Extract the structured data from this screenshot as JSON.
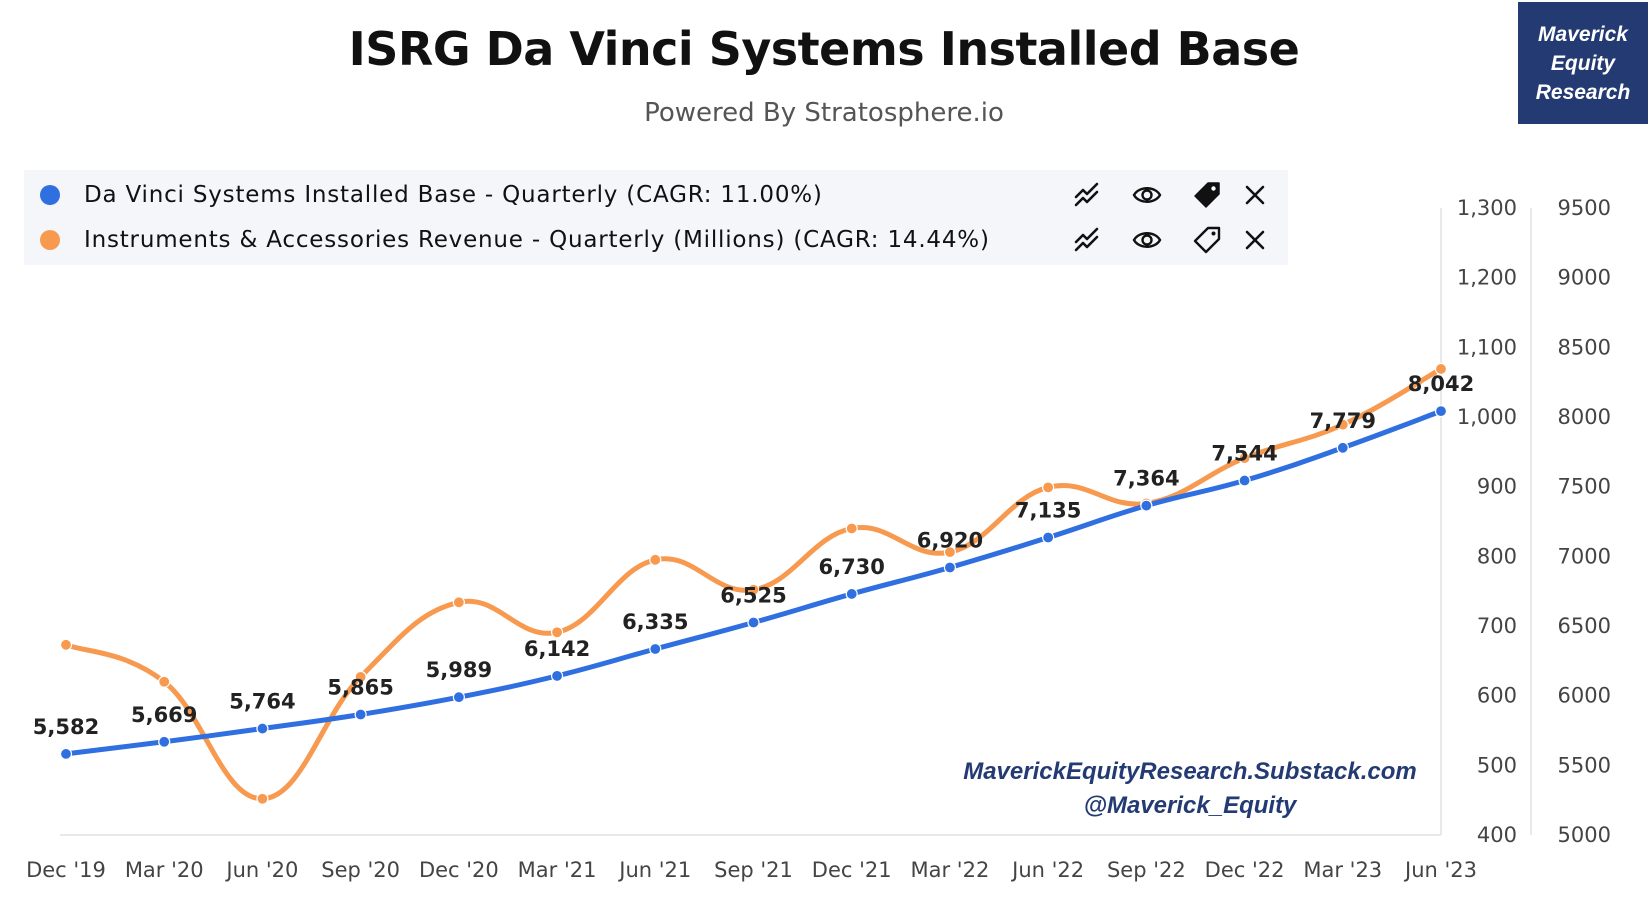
{
  "header": {
    "title": "ISRG Da Vinci Systems Installed Base",
    "subtitle": "Powered By Stratosphere.io",
    "brand_lines": [
      "Maverick",
      "Equity",
      "Research"
    ]
  },
  "legend": {
    "items": [
      {
        "label": "Da Vinci Systems Installed Base - Quarterly (CAGR: 11.00%)",
        "color": "#2f6fe0",
        "icons": [
          "trend-icon",
          "eye-icon",
          "tag-filled-icon",
          "close-icon"
        ]
      },
      {
        "label": "Instruments & Accessories Revenue - Quarterly (Millions) (CAGR: 14.44%)",
        "color": "#f79a50",
        "icons": [
          "trend-icon",
          "eye-icon",
          "tag-outline-icon",
          "close-icon"
        ]
      }
    ]
  },
  "watermark": {
    "line1": "MaverickEquityResearch.Substack.com",
    "line2": "@Maverick_Equity"
  },
  "chart_data": {
    "type": "line",
    "categories": [
      "Dec '19",
      "Mar '20",
      "Jun '20",
      "Sep '20",
      "Dec '20",
      "Mar '21",
      "Jun '21",
      "Sep '21",
      "Dec '21",
      "Mar '22",
      "Jun '22",
      "Sep '22",
      "Dec '22",
      "Mar '23",
      "Jun '23"
    ],
    "series": [
      {
        "name": "Da Vinci Systems Installed Base - Quarterly (CAGR: 11.00%)",
        "axis": "right-outer",
        "color": "#2f6fe0",
        "values": [
          5582,
          5669,
          5764,
          5865,
          5989,
          6142,
          6335,
          6525,
          6730,
          6920,
          7135,
          7364,
          7544,
          7779,
          8042
        ],
        "data_labels": [
          "5,582",
          "5,669",
          "5,764",
          "5,865",
          "5,989",
          "6,142",
          "6,335",
          "6,525",
          "6,730",
          "6,920",
          "7,135",
          "7,364",
          "7,544",
          "7,779",
          "8,042"
        ]
      },
      {
        "name": "Instruments & Accessories Revenue - Quarterly (Millions) (CAGR: 14.44%)",
        "axis": "right-inner",
        "color": "#f79a50",
        "values": [
          673,
          620,
          452,
          627,
          734,
          691,
          795,
          752,
          840,
          806,
          899,
          876,
          941,
          989,
          1069
        ]
      }
    ],
    "y_axes": [
      {
        "id": "right-inner",
        "range": [
          400,
          1300
        ],
        "ticks": [
          400,
          500,
          600,
          700,
          800,
          900,
          1000,
          1100,
          1200,
          1300
        ],
        "tick_labels": [
          "400",
          "500",
          "600",
          "700",
          "800",
          "900",
          "1,000",
          "1,100",
          "1,200",
          "1,300"
        ]
      },
      {
        "id": "right-outer",
        "range": [
          5000,
          9500
        ],
        "ticks": [
          5000,
          5500,
          6000,
          6500,
          7000,
          7500,
          8000,
          8500,
          9000,
          9500
        ],
        "tick_labels": [
          "5000",
          "5500",
          "6000",
          "6500",
          "7000",
          "7500",
          "8000",
          "8500",
          "9000",
          "9500"
        ]
      }
    ],
    "grid": false,
    "legend_position": "top-left"
  }
}
